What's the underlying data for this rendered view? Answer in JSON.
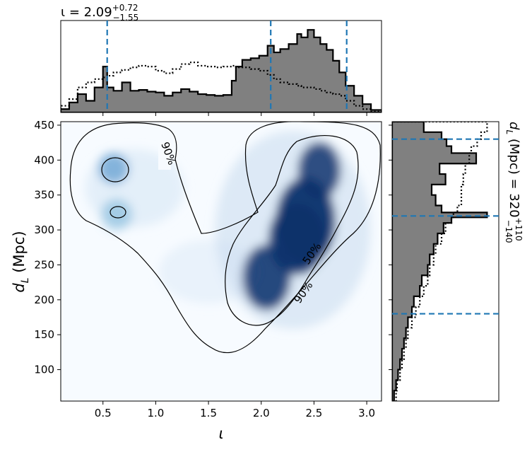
{
  "chart_data": {
    "type": "scatter",
    "subtype": "corner-plot (2D density with contours + marginal histograms)",
    "title_top": {
      "prefix": "ι = 2.09",
      "sup": "+0.72",
      "sub": "−1.55"
    },
    "title_right": {
      "prefix": "d",
      "sub_var": "L",
      "middle": " (Mpc) = 320",
      "sup": "+110",
      "sub": "−140"
    },
    "xlabel": "ι",
    "ylabel": {
      "var": "d",
      "sub": "L",
      "unit": " (Mpc)"
    },
    "xlim": [
      0.1,
      3.14
    ],
    "ylim": [
      55,
      455
    ],
    "xticks": [
      "0.5",
      "1.0",
      "1.5",
      "2.0",
      "2.5",
      "3.0"
    ],
    "yticks": [
      "100",
      "150",
      "200",
      "250",
      "300",
      "350",
      "400",
      "450"
    ],
    "contour_labels": [
      "90%",
      "50%",
      "90%"
    ],
    "colormap": "Blues",
    "density_peaks": [
      {
        "x": 2.42,
        "y": 312,
        "weight": 1.0
      },
      {
        "x": 2.05,
        "y": 232,
        "weight": 0.85
      },
      {
        "x": 2.55,
        "y": 385,
        "weight": 0.8
      },
      {
        "x": 0.6,
        "y": 388,
        "weight": 0.45
      },
      {
        "x": 0.63,
        "y": 322,
        "weight": 0.3
      }
    ],
    "quantile_lines_iota": [
      0.54,
      2.09,
      2.81
    ],
    "quantile_lines_dL": [
      180,
      320,
      430
    ],
    "line_color": "#1f77b4",
    "hist_fill": "#808080",
    "iota_hist_edges": [
      0.1,
      0.18,
      0.26,
      0.34,
      0.42,
      0.5,
      0.54,
      0.6,
      0.68,
      0.76,
      0.84,
      0.92,
      1.0,
      1.08,
      1.16,
      1.24,
      1.32,
      1.4,
      1.48,
      1.56,
      1.64,
      1.72,
      1.76,
      1.82,
      1.9,
      1.98,
      2.06,
      2.12,
      2.18,
      2.26,
      2.34,
      2.38,
      2.44,
      2.5,
      2.56,
      2.62,
      2.68,
      2.74,
      2.8,
      2.88,
      2.96,
      3.04,
      3.14
    ],
    "iota_hist_solid": [
      0.04,
      0.12,
      0.22,
      0.14,
      0.3,
      0.55,
      0.3,
      0.26,
      0.36,
      0.26,
      0.27,
      0.25,
      0.24,
      0.2,
      0.24,
      0.28,
      0.25,
      0.22,
      0.21,
      0.2,
      0.21,
      0.38,
      0.55,
      0.63,
      0.65,
      0.68,
      0.8,
      0.72,
      0.76,
      0.82,
      0.94,
      0.9,
      0.99,
      0.9,
      0.82,
      0.75,
      0.62,
      0.48,
      0.32,
      0.2,
      0.1,
      0.03
    ],
    "iota_hist_dotted": [
      0.08,
      0.16,
      0.3,
      0.36,
      0.4,
      0.42,
      0.44,
      0.48,
      0.51,
      0.54,
      0.56,
      0.55,
      0.5,
      0.47,
      0.52,
      0.58,
      0.6,
      0.56,
      0.55,
      0.54,
      0.55,
      0.56,
      0.54,
      0.54,
      0.52,
      0.5,
      0.45,
      0.4,
      0.36,
      0.34,
      0.32,
      0.3,
      0.3,
      0.28,
      0.26,
      0.24,
      0.22,
      0.2,
      0.14,
      0.08,
      0.04,
      0.01
    ],
    "dL_hist_edges": [
      55,
      70,
      85,
      100,
      115,
      130,
      145,
      160,
      175,
      190,
      205,
      220,
      235,
      250,
      265,
      280,
      295,
      310,
      318,
      325,
      335,
      350,
      365,
      380,
      395,
      410,
      420,
      430,
      440,
      455
    ],
    "dL_hist_solid": [
      0.02,
      0.04,
      0.06,
      0.08,
      0.1,
      0.12,
      0.14,
      0.16,
      0.2,
      0.22,
      0.28,
      0.3,
      0.36,
      0.38,
      0.42,
      0.46,
      0.52,
      0.6,
      0.96,
      0.5,
      0.44,
      0.4,
      0.54,
      0.48,
      0.85,
      0.6,
      0.55,
      0.5,
      0.32
    ],
    "dL_hist_dotted": [
      0.04,
      0.05,
      0.08,
      0.1,
      0.12,
      0.14,
      0.16,
      0.2,
      0.24,
      0.28,
      0.32,
      0.36,
      0.38,
      0.42,
      0.44,
      0.5,
      0.54,
      0.6,
      0.62,
      0.66,
      0.7,
      0.7,
      0.72,
      0.74,
      0.78,
      0.8,
      0.86,
      0.9,
      0.96
    ]
  }
}
